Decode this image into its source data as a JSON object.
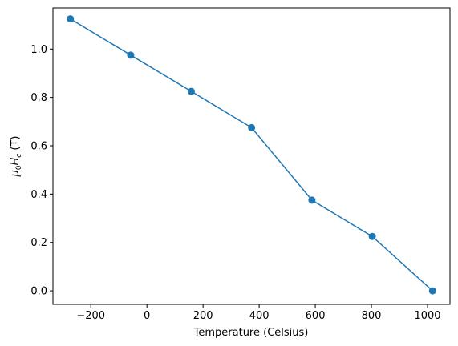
{
  "chart_data": {
    "type": "line",
    "title": "",
    "xlabel": "Temperature (Celsius)",
    "ylabel": "μ0Hc (T)",
    "ylabel_parts": {
      "mu": "μ",
      "sub0": "0",
      "H": "H",
      "subc": "c",
      "unit": " (T)"
    },
    "xlim": [
      -335,
      1080
    ],
    "ylim": [
      -0.056,
      1.17
    ],
    "xticks": [
      -200,
      0,
      200,
      400,
      600,
      800,
      1000
    ],
    "xtick_labels": [
      "−200",
      "0",
      "200",
      "400",
      "600",
      "800",
      "1000"
    ],
    "yticks": [
      0.0,
      0.2,
      0.4,
      0.6,
      0.8,
      1.0
    ],
    "ytick_labels": [
      "0.0",
      "0.2",
      "0.4",
      "0.6",
      "0.8",
      "1.0"
    ],
    "grid": false,
    "color": "#1f77b4",
    "series": [
      {
        "x": [
          -273,
          -58,
          158,
          373,
          588,
          803,
          1018
        ],
        "y": [
          1.125,
          0.975,
          0.825,
          0.675,
          0.375,
          0.225,
          0.0
        ]
      }
    ]
  }
}
